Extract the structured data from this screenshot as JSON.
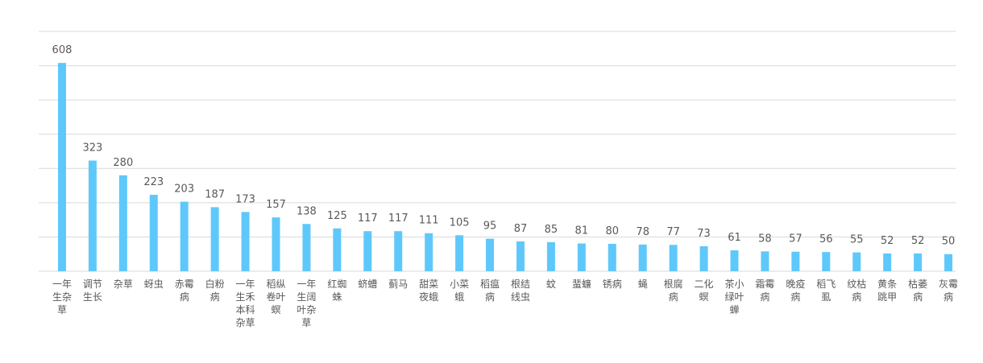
{
  "chart_data": {
    "type": "bar",
    "categories": [
      "一年生杂草",
      "调节生长",
      "杂草",
      "蚜虫",
      "赤霉病",
      "白粉病",
      "一年生禾本科杂草",
      "稻纵卷叶螟",
      "一年生阔叶杂草",
      "红蜘蛛",
      "蛴螬",
      "蓟马",
      "甜菜夜蛾",
      "小菜蛾",
      "稻瘟病",
      "根结线虫",
      "蚊",
      "蜚蠊",
      "锈病",
      "蝇",
      "根腐病",
      "二化螟",
      "茶小绿叶蝉",
      "霜霉病",
      "晚疫病",
      "稻飞虱",
      "纹枯病",
      "黄条跳甲",
      "枯萎病",
      "灰霉病"
    ],
    "values": [
      608,
      323,
      280,
      223,
      203,
      187,
      173,
      157,
      138,
      125,
      117,
      117,
      111,
      105,
      95,
      87,
      85,
      81,
      80,
      78,
      77,
      73,
      61,
      58,
      57,
      56,
      55,
      52,
      52,
      50
    ],
    "color": "#5fc8fb",
    "ylim": [
      0,
      700
    ],
    "yticks": [
      0,
      100,
      200,
      300,
      400,
      500,
      600,
      700
    ],
    "grid": true
  }
}
